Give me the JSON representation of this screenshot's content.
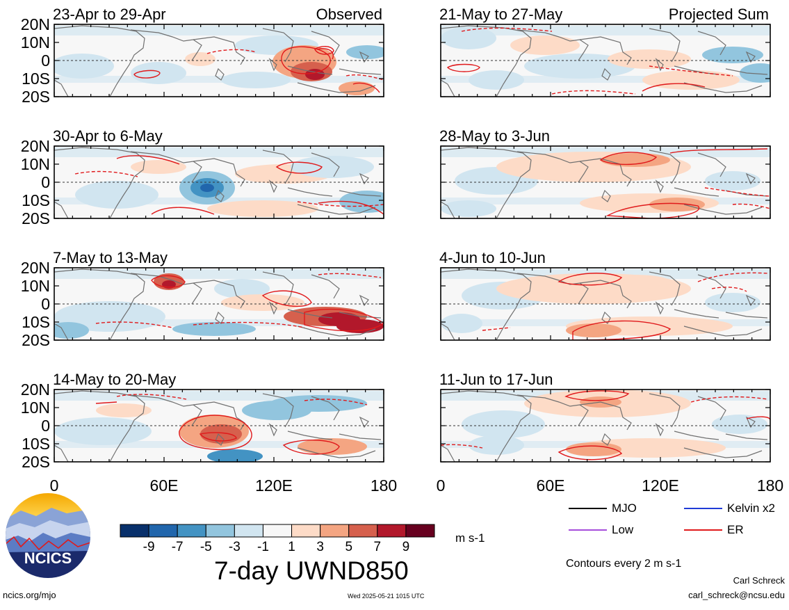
{
  "panels": [
    {
      "period": "23-Apr to 29-Apr",
      "tag": "Observed",
      "column": 0,
      "row": 0
    },
    {
      "period": "30-Apr to 6-May",
      "tag": "",
      "column": 0,
      "row": 1
    },
    {
      "period": "7-May to 13-May",
      "tag": "",
      "column": 0,
      "row": 2
    },
    {
      "period": "14-May to 20-May",
      "tag": "",
      "column": 0,
      "row": 3
    },
    {
      "period": "21-May to 27-May",
      "tag": "Projected Sum",
      "column": 1,
      "row": 0
    },
    {
      "period": "28-May to 3-Jun",
      "tag": "",
      "column": 1,
      "row": 1
    },
    {
      "period": "4-Jun to 10-Jun",
      "tag": "",
      "column": 1,
      "row": 2
    },
    {
      "period": "11-Jun to 17-Jun",
      "tag": "",
      "column": 1,
      "row": 3
    }
  ],
  "lat_labels": [
    "20N",
    "10N",
    "0",
    "10S",
    "20S"
  ],
  "lon_labels": [
    "0",
    "60E",
    "120E",
    "180"
  ],
  "colorbar": {
    "colors": [
      "#08306b",
      "#2166ac",
      "#4393c3",
      "#92c5de",
      "#d1e5f0",
      "#f7f7f7",
      "#fddbc7",
      "#f4a582",
      "#d6604d",
      "#b2182b",
      "#67001f"
    ],
    "labels": [
      "-9",
      "-7",
      "-5",
      "-3",
      "-1",
      "1",
      "3",
      "5",
      "7",
      "9"
    ],
    "units": "m s-1"
  },
  "title": "7-day UWND850",
  "legend": [
    {
      "name": "MJO",
      "color": "#000000"
    },
    {
      "name": "Kelvin x2",
      "color": "#1f3bd6"
    },
    {
      "name": "Low",
      "color": "#a64ddb"
    },
    {
      "name": "ER",
      "color": "#e0191b"
    }
  ],
  "contour_note": "Contours every 2 m s-1",
  "logo_text": "NCICS",
  "footer": {
    "url": "ncics.org/mjo",
    "timestamp": "Wed 2025-05-21 1015 UTC",
    "author": "Carl Schreck",
    "email": "carl_schreck@ncsu.edu"
  }
}
